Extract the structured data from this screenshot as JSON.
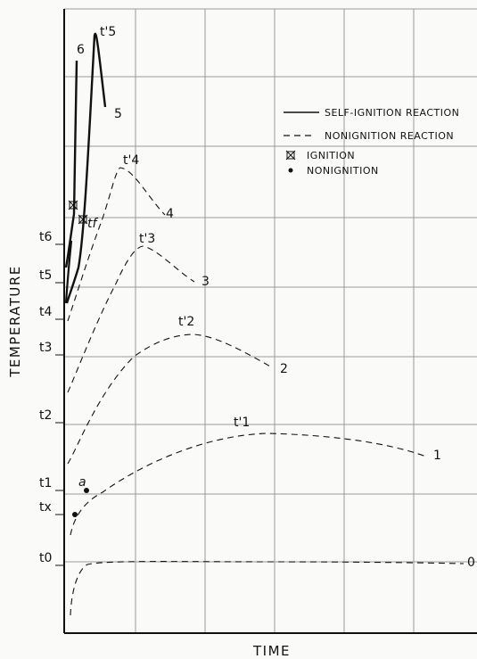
{
  "chart_data": {
    "type": "line",
    "xlabel": "TIME",
    "ylabel": "TEMPERATURE",
    "y_tick_labels": [
      "t0",
      "tx",
      "t1",
      "t2",
      "t3",
      "t4",
      "t5",
      "t6"
    ],
    "legend": [
      {
        "label": "SELF-IGNITION REACTION",
        "style": "solid"
      },
      {
        "label": "NONIGNITION REACTION",
        "style": "dashed"
      },
      {
        "label": "IGNITION",
        "marker": "star"
      },
      {
        "label": "NONIGNITION",
        "marker": "dot"
      }
    ],
    "series": [
      {
        "name": "0",
        "style": "dashed"
      },
      {
        "name": "1",
        "style": "dashed",
        "peak_label": "t'1"
      },
      {
        "name": "2",
        "style": "dashed",
        "peak_label": "t'2"
      },
      {
        "name": "3",
        "style": "dashed",
        "peak_label": "t'3"
      },
      {
        "name": "4",
        "style": "dashed",
        "peak_label": "t'4"
      },
      {
        "name": "5",
        "style": "solid",
        "peak_label": "t'5"
      },
      {
        "name": "6",
        "style": "solid"
      }
    ],
    "annotations": [
      "a",
      "tf"
    ],
    "grid": true,
    "legend_position": "top-right"
  },
  "colors": {
    "ink": "#111111",
    "grid": "#9a9a9a",
    "background": "#fafaf8"
  }
}
